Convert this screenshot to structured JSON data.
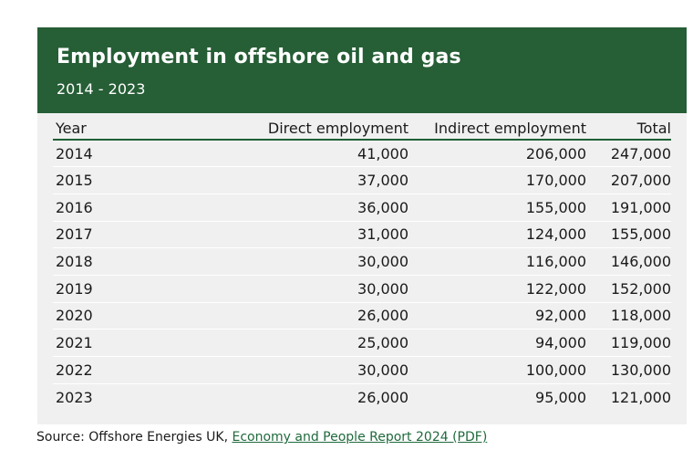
{
  "chart_data": {
    "type": "table",
    "title": "Employment in offshore oil and gas",
    "subtitle": "2014 - 2023",
    "columns": [
      "Year",
      "Direct employment",
      "Indirect employment",
      "Total"
    ],
    "rows": [
      [
        "2014",
        "41,000",
        "206,000",
        "247,000"
      ],
      [
        "2015",
        "37,000",
        "170,000",
        "207,000"
      ],
      [
        "2016",
        "36,000",
        "155,000",
        "191,000"
      ],
      [
        "2017",
        "31,000",
        "124,000",
        "155,000"
      ],
      [
        "2018",
        "30,000",
        "116,000",
        "146,000"
      ],
      [
        "2019",
        "30,000",
        "122,000",
        "152,000"
      ],
      [
        "2020",
        "26,000",
        "92,000",
        "118,000"
      ],
      [
        "2021",
        "25,000",
        "94,000",
        "119,000"
      ],
      [
        "2022",
        "30,000",
        "100,000",
        "130,000"
      ],
      [
        "2023",
        "26,000",
        "95,000",
        "121,000"
      ]
    ]
  },
  "source": {
    "prefix": "Source: Offshore Energies UK, ",
    "link_text": "Economy and People Report 2024 (PDF)"
  },
  "colors": {
    "header_bg": "#265e36",
    "panel_bg": "#f0f0f0",
    "link": "#1f6a3c"
  }
}
